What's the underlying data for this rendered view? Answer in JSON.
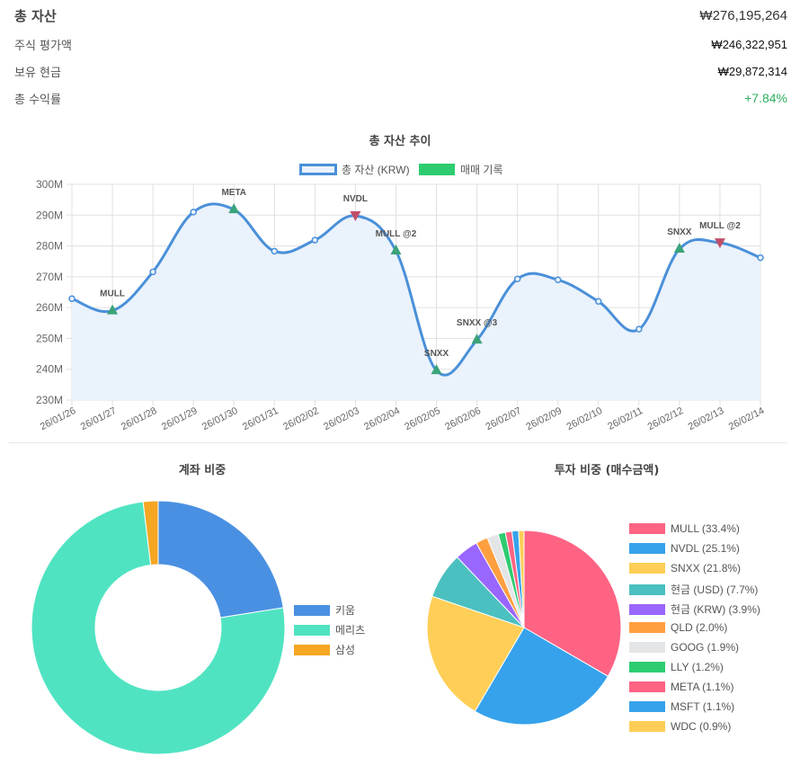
{
  "summary": {
    "total_assets_label": "총 자산",
    "total_assets_value": "₩276,195,264",
    "stock_value_label": "주식 평가액",
    "stock_value_value": "₩246,322,951",
    "cash_label": "보유 현금",
    "cash_value": "₩29,872,314",
    "return_label": "총 수익률",
    "return_value": "+7.84%",
    "return_color": "#2eaf5e"
  },
  "line_chart": {
    "title": "총 자산 추이",
    "legend": [
      {
        "label": "총 자산 (KRW)",
        "color": "#4a90d9"
      },
      {
        "label": "매매 기록",
        "color": "#2ecc71"
      }
    ]
  },
  "account_chart": {
    "title": "계좌 비중",
    "legend": [
      {
        "label": "키움",
        "color": "#4a90e2"
      },
      {
        "label": "메리츠",
        "color": "#50e3c2"
      },
      {
        "label": "삼성",
        "color": "#f5a623"
      }
    ]
  },
  "invest_chart": {
    "title": "투자 비중 (매수금액)",
    "legend": [
      {
        "label": "MULL (33.4%)",
        "color": "#ff6384"
      },
      {
        "label": "NVDL (25.1%)",
        "color": "#36a2eb"
      },
      {
        "label": "SNXX (21.8%)",
        "color": "#ffce56"
      },
      {
        "label": "현금 (USD) (7.7%)",
        "color": "#4bc0c0"
      },
      {
        "label": "현금 (KRW) (3.9%)",
        "color": "#9966ff"
      },
      {
        "label": "QLD (2.0%)",
        "color": "#ff9f40"
      },
      {
        "label": "GOOG (1.9%)",
        "color": "#e4e5e7"
      },
      {
        "label": "LLY (1.2%)",
        "color": "#2ecc71"
      },
      {
        "label": "META (1.1%)",
        "color": "#ff6384"
      },
      {
        "label": "MSFT (1.1%)",
        "color": "#36a2eb"
      },
      {
        "label": "WDC (0.9%)",
        "color": "#ffce56"
      }
    ]
  },
  "chart_data": [
    {
      "type": "line",
      "title": "총 자산 추이",
      "xlabel": "",
      "ylabel": "",
      "ylim": [
        230000000,
        300000000
      ],
      "yticks": [
        "230M",
        "240M",
        "250M",
        "260M",
        "270M",
        "280M",
        "290M",
        "300M"
      ],
      "grid": true,
      "legend_position": "top",
      "categories": [
        "26/01/26",
        "26/01/27",
        "26/01/28",
        "26/01/29",
        "26/01/30",
        "26/01/31",
        "26/02/02",
        "26/02/03",
        "26/02/04",
        "26/02/05",
        "26/02/06",
        "26/02/07",
        "26/02/09",
        "26/02/10",
        "26/02/11",
        "26/02/12",
        "26/02/13",
        "26/02/14"
      ],
      "series": [
        {
          "name": "총 자산 (KRW)",
          "color": "#4a90d9",
          "fill": "#eaf2fb",
          "values": [
            262900000,
            259000000,
            271600000,
            291000000,
            291800000,
            278300000,
            281900000,
            289800000,
            278400000,
            239600000,
            249500000,
            269300000,
            269000000,
            262000000,
            253000000,
            279000000,
            281000000,
            276200000
          ]
        }
      ],
      "annotations": [
        {
          "x": "26/01/27",
          "label": "MULL",
          "type": "buy"
        },
        {
          "x": "26/01/30",
          "label": "META",
          "type": "buy"
        },
        {
          "x": "26/02/03",
          "label": "NVDL",
          "type": "sell"
        },
        {
          "x": "26/02/04",
          "label": "MULL @2",
          "type": "buy"
        },
        {
          "x": "26/02/05",
          "label": "SNXX",
          "type": "buy"
        },
        {
          "x": "26/02/06",
          "label": "SNXX @3",
          "type": "buy"
        },
        {
          "x": "26/02/12",
          "label": "SNXX",
          "type": "buy"
        },
        {
          "x": "26/02/13",
          "label": "MULL @2",
          "type": "sell"
        }
      ]
    },
    {
      "type": "pie",
      "variant": "doughnut",
      "title": "계좌 비중",
      "categories": [
        "키움",
        "메리츠",
        "삼성"
      ],
      "values": [
        22.5,
        75.6,
        1.9
      ],
      "colors": [
        "#4a90e2",
        "#50e3c2",
        "#f5a623"
      ],
      "legend_position": "right"
    },
    {
      "type": "pie",
      "title": "투자 비중 (매수금액)",
      "categories": [
        "MULL",
        "NVDL",
        "SNXX",
        "현금 (USD)",
        "현금 (KRW)",
        "QLD",
        "GOOG",
        "LLY",
        "META",
        "MSFT",
        "WDC"
      ],
      "values": [
        33.4,
        25.1,
        21.8,
        7.7,
        3.9,
        2.0,
        1.9,
        1.2,
        1.1,
        1.1,
        0.9
      ],
      "colors": [
        "#ff6384",
        "#36a2eb",
        "#ffce56",
        "#4bc0c0",
        "#9966ff",
        "#ff9f40",
        "#e4e5e7",
        "#2ecc71",
        "#ff6384",
        "#36a2eb",
        "#ffce56"
      ],
      "legend_position": "right"
    }
  ]
}
